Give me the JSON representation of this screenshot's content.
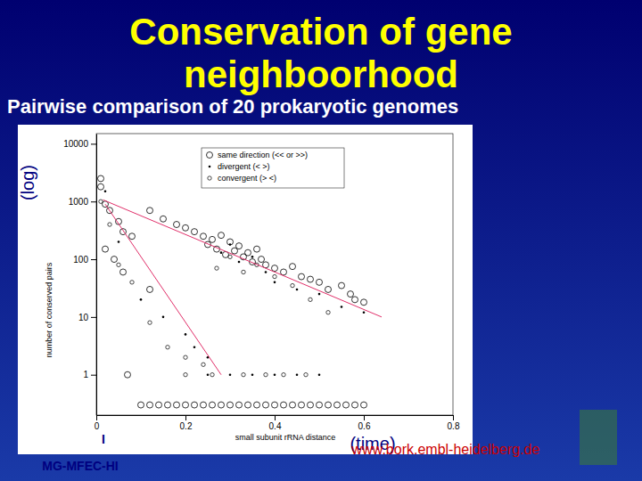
{
  "chart_data": {
    "type": "scatter",
    "title": "Conservation of gene neighboorhood",
    "subtitle": "Pairwise comparison of 20 prokaryotic genomes",
    "x_label": "small subunit rRNA distance",
    "y_label": "number of conserved pairs",
    "annotations": [
      {
        "text": "(log)"
      },
      {
        "text": "(time)"
      },
      {
        "text": "www.bork.embl-heidelberg.de"
      },
      {
        "text": "MG-MFEC-HI"
      },
      {
        "text": "I"
      }
    ],
    "log": "y",
    "legend": "upper-right",
    "xlim": [
      0,
      0.8
    ],
    "xticks": [
      0,
      0.2,
      0.4,
      0.6,
      0.8
    ],
    "ylim": [
      0.2,
      15000
    ],
    "yticks": [
      1,
      10,
      100,
      1000,
      10000
    ],
    "series": [
      {
        "name": "same direction (<< or >>)",
        "color": "#000000",
        "marker": "circle",
        "x": [
          0.01,
          0.01,
          0.02,
          0.03,
          0.05,
          0.06,
          0.08,
          0.12,
          0.15,
          0.18,
          0.2,
          0.22,
          0.24,
          0.25,
          0.26,
          0.27,
          0.28,
          0.29,
          0.3,
          0.31,
          0.32,
          0.33,
          0.34,
          0.35,
          0.36,
          0.37,
          0.38,
          0.4,
          0.42,
          0.44,
          0.46,
          0.48,
          0.5,
          0.52,
          0.55,
          0.57,
          0.58,
          0.6,
          0.02,
          0.04,
          0.12,
          0.06,
          0.07,
          0.1,
          0.12,
          0.14,
          0.16,
          0.18,
          0.2,
          0.22,
          0.24,
          0.26,
          0.28,
          0.3,
          0.32,
          0.34,
          0.36,
          0.38,
          0.4,
          0.42,
          0.44,
          0.46,
          0.48,
          0.5,
          0.52,
          0.54,
          0.56,
          0.58,
          0.6
        ],
        "values": [
          2500,
          1800,
          900,
          700,
          450,
          300,
          250,
          700,
          500,
          400,
          350,
          300,
          250,
          180,
          220,
          150,
          260,
          120,
          200,
          140,
          170,
          110,
          130,
          90,
          150,
          100,
          80,
          70,
          60,
          75,
          50,
          45,
          40,
          30,
          35,
          25,
          20,
          18,
          150,
          100,
          30,
          60,
          1,
          0.3,
          0.3,
          0.3,
          0.3,
          0.3,
          0.3,
          0.3,
          0.3,
          0.3,
          0.3,
          0.3,
          0.3,
          0.3,
          0.3,
          0.3,
          0.3,
          0.3,
          0.3,
          0.3,
          0.3,
          0.3,
          0.3,
          0.3,
          0.3,
          0.3,
          0.3
        ]
      },
      {
        "name": "divergent (< >)",
        "color": "#000000",
        "marker": "point",
        "x": [
          0.02,
          0.05,
          0.1,
          0.15,
          0.2,
          0.22,
          0.25,
          0.28,
          0.3,
          0.32,
          0.35,
          0.38,
          0.4,
          0.45,
          0.5,
          0.55,
          0.6,
          0.25,
          0.3,
          0.35,
          0.4,
          0.45,
          0.5
        ],
        "values": [
          1500,
          200,
          20,
          10,
          5,
          3,
          2,
          130,
          180,
          90,
          110,
          60,
          40,
          30,
          25,
          15,
          12,
          1,
          1,
          1,
          1,
          1,
          1
        ]
      },
      {
        "name": "convergent (> <)",
        "color": "#000000",
        "marker": "small-circle",
        "x": [
          0.01,
          0.03,
          0.05,
          0.08,
          0.12,
          0.16,
          0.2,
          0.24,
          0.27,
          0.3,
          0.33,
          0.36,
          0.4,
          0.44,
          0.48,
          0.52,
          0.2,
          0.26,
          0.33,
          0.38,
          0.42,
          0.47
        ],
        "values": [
          1000,
          400,
          80,
          40,
          8,
          3,
          2,
          1.5,
          70,
          110,
          60,
          80,
          50,
          35,
          20,
          12,
          1,
          1,
          1,
          1,
          1,
          1
        ]
      },
      {
        "type": "line",
        "color": "#e0306a",
        "x": [
          0.015,
          0.64
        ],
        "values": [
          1070,
          10
        ]
      },
      {
        "type": "line",
        "color": "#e0306a",
        "x": [
          0.02,
          0.28
        ],
        "values": [
          900,
          1
        ]
      }
    ]
  }
}
